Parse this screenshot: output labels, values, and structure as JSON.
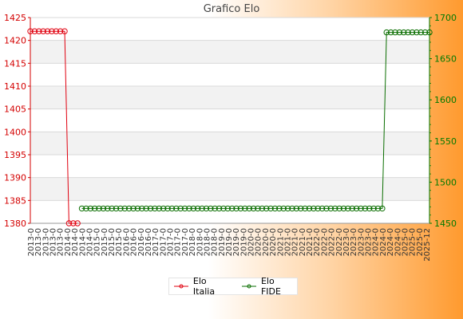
{
  "chart_data": {
    "type": "line",
    "title": "Grafico Elo",
    "left_axis": {
      "min": 1380,
      "max": 1425,
      "step": 5,
      "color": "#d40000"
    },
    "right_axis": {
      "min": 1450,
      "max": 1700,
      "step": 50,
      "color": "#007a00"
    },
    "grid": true,
    "legend_position": "bottom-center",
    "series": [
      {
        "name": "Elo Italia",
        "axis": "left",
        "color": "#e0000f",
        "values": [
          1422,
          1422,
          1422,
          1422,
          1422,
          1422,
          1422,
          1422,
          1422,
          1380,
          1380,
          1380,
          null,
          null,
          null,
          null,
          null,
          null,
          null,
          null,
          null,
          null,
          null,
          null,
          null,
          null,
          null,
          null,
          null,
          null,
          null,
          null,
          null,
          null,
          null,
          null,
          null,
          null,
          null,
          null,
          null,
          null,
          null,
          null,
          null,
          null,
          null,
          null,
          null,
          null,
          null,
          null,
          null,
          null,
          null,
          null,
          null,
          null,
          null,
          null,
          null,
          null,
          null,
          null,
          null,
          null,
          null,
          null,
          null,
          null,
          null,
          null,
          null,
          null,
          null,
          null
        ]
      },
      {
        "name": "Elo FIDE",
        "axis": "right",
        "color": "#0a6e00",
        "values": [
          null,
          null,
          null,
          null,
          null,
          null,
          null,
          null,
          null,
          null,
          null,
          null,
          1468,
          1468,
          1468,
          1468,
          1468,
          1468,
          1468,
          1468,
          1468,
          1468,
          1468,
          1468,
          1468,
          1468,
          1468,
          1468,
          1468,
          1468,
          1468,
          1468,
          1468,
          1468,
          1468,
          1468,
          1468,
          1468,
          1468,
          1468,
          1468,
          1468,
          1468,
          1468,
          1468,
          1468,
          1468,
          1468,
          1468,
          1468,
          1468,
          1468,
          1468,
          1468,
          1468,
          1468,
          1468,
          1468,
          1468,
          1468,
          1468,
          1468,
          1468,
          1468,
          1468,
          1468,
          1468,
          1468,
          1468,
          1468,
          1468,
          1468,
          1468,
          1468,
          1468,
          1468,
          1468,
          1468,
          1468,
          1468,
          1468,
          1468,
          1468,
          1682,
          1682,
          1682,
          1682,
          1682,
          1682,
          1682,
          1682,
          1682,
          1682,
          1682
        ]
      }
    ],
    "x_label_prefixes": [
      "2013-0",
      "2014-0",
      "2015-0",
      "2016-0",
      "2017-0",
      "2018-0",
      "2019-0",
      "2020-0",
      "2021-0",
      "2022-0",
      "2023-0",
      "2024-0",
      "2025-0"
    ],
    "x_last_label": "2025-12"
  }
}
